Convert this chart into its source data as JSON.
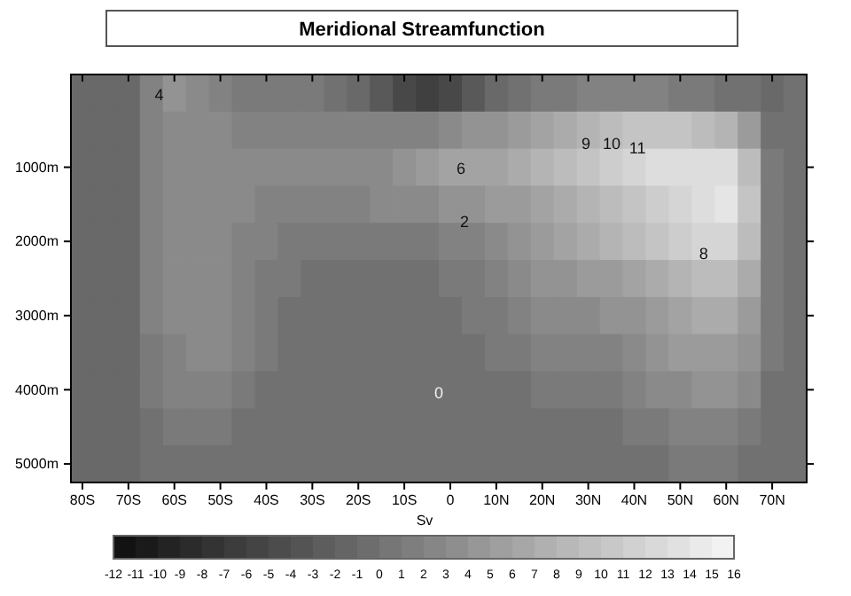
{
  "chart_data": {
    "type": "heatmap",
    "title": "Meridional Streamfunction",
    "clabel": "Sv",
    "categories": [
      "80S",
      null,
      "70S",
      null,
      "60S",
      null,
      "50S",
      null,
      "40S",
      null,
      "30S",
      null,
      "20S",
      null,
      "10S",
      null,
      "0",
      null,
      "10N",
      null,
      "20N",
      null,
      "30N",
      null,
      "40N",
      null,
      "50N",
      null,
      "60N",
      null,
      "70N",
      null
    ],
    "y_categories": [
      null,
      null,
      "1000m",
      null,
      "2000m",
      null,
      "3000m",
      null,
      "4000m",
      null,
      "5000m"
    ],
    "clim": [
      -12,
      16
    ],
    "cticks": [
      -12,
      -11,
      -10,
      -9,
      -8,
      -7,
      -6,
      -5,
      -4,
      -3,
      -2,
      -1,
      0,
      1,
      2,
      3,
      4,
      5,
      6,
      7,
      8,
      9,
      10,
      11,
      12,
      13,
      14,
      15,
      16
    ],
    "cells": [
      [
        -1,
        -1,
        -1,
        2,
        4,
        3,
        2,
        1,
        1,
        1,
        1,
        0,
        -1,
        -3,
        -5,
        -6,
        -5,
        -3,
        -1,
        0,
        1,
        1,
        2,
        2,
        2,
        2,
        1,
        1,
        0,
        0,
        -1,
        0
      ],
      [
        -1,
        -1,
        -1,
        2,
        3,
        3,
        3,
        2,
        2,
        2,
        2,
        2,
        2,
        2,
        2,
        2,
        3,
        4,
        4,
        5,
        6,
        7,
        8,
        9,
        10,
        10,
        10,
        9,
        8,
        5,
        0,
        0
      ],
      [
        -1,
        -1,
        -1,
        2,
        3,
        3,
        3,
        3,
        3,
        3,
        3,
        3,
        3,
        3,
        4,
        5,
        6,
        6,
        6,
        7,
        8,
        9,
        10,
        11,
        12,
        13,
        13,
        13,
        13,
        9,
        1,
        0
      ],
      [
        -1,
        -1,
        -1,
        2,
        3,
        3,
        3,
        3,
        2,
        2,
        2,
        2,
        2,
        3,
        3,
        3,
        4,
        4,
        5,
        5,
        6,
        7,
        8,
        9,
        10,
        11,
        12,
        13,
        14,
        10,
        1,
        0
      ],
      [
        -1,
        -1,
        -1,
        2,
        3,
        3,
        3,
        2,
        2,
        1,
        1,
        1,
        1,
        1,
        1,
        1,
        2,
        2,
        3,
        4,
        5,
        6,
        7,
        8,
        9,
        10,
        11,
        12,
        12,
        9,
        1,
        0
      ],
      [
        -1,
        -1,
        -1,
        2,
        3,
        3,
        3,
        2,
        1,
        1,
        0,
        0,
        0,
        0,
        0,
        0,
        1,
        1,
        2,
        3,
        4,
        4,
        5,
        5,
        6,
        7,
        8,
        9,
        9,
        7,
        1,
        0
      ],
      [
        -1,
        -1,
        -1,
        2,
        3,
        3,
        3,
        2,
        1,
        0,
        0,
        0,
        0,
        0,
        0,
        0,
        0,
        1,
        1,
        2,
        3,
        3,
        3,
        4,
        4,
        5,
        6,
        7,
        7,
        5,
        1,
        0
      ],
      [
        -1,
        -1,
        -1,
        1,
        2,
        3,
        3,
        2,
        1,
        0,
        0,
        0,
        0,
        0,
        0,
        0,
        0,
        0,
        1,
        1,
        2,
        2,
        2,
        2,
        3,
        4,
        5,
        5,
        5,
        4,
        1,
        0
      ],
      [
        -1,
        -1,
        -1,
        1,
        2,
        2,
        2,
        1,
        0,
        0,
        0,
        0,
        0,
        0,
        0,
        0,
        0,
        0,
        0,
        0,
        1,
        1,
        1,
        1,
        2,
        3,
        3,
        4,
        4,
        3,
        0,
        0
      ],
      [
        -1,
        -1,
        -1,
        0,
        1,
        1,
        1,
        0,
        0,
        0,
        0,
        0,
        0,
        0,
        0,
        0,
        0,
        0,
        0,
        0,
        0,
        0,
        0,
        0,
        1,
        1,
        2,
        2,
        2,
        1,
        0,
        0
      ],
      [
        -1,
        -1,
        -1,
        0,
        0,
        0,
        0,
        0,
        0,
        0,
        0,
        0,
        0,
        0,
        0,
        0,
        0,
        0,
        0,
        0,
        0,
        0,
        0,
        0,
        0,
        0,
        1,
        1,
        1,
        0,
        0,
        0
      ]
    ],
    "annotations": [
      "4",
      "6",
      "2",
      "9",
      "10",
      "11",
      "8",
      "0"
    ]
  }
}
